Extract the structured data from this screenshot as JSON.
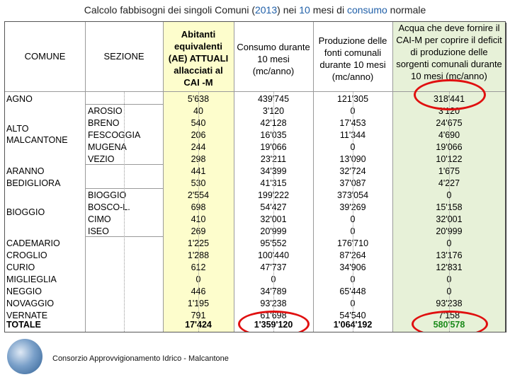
{
  "title": {
    "before": "Calcolo fabbisogni dei singoli Comuni (",
    "year": "2013",
    "middle": ") nei ",
    "ten": "10",
    "middle2": " mesi di ",
    "consumo": "consumo",
    "after": " normale"
  },
  "headers": {
    "comune": "COMUNE",
    "sezione": "SEZIONE",
    "abitanti": "Abitanti equivalenti (AE) ATTUALI allacciati al CAI -M",
    "consumo": "Consumo durante 10 mesi (mc/anno)",
    "produzione": "Produzione delle fonti comunali durante 10 mesi (mc/anno)",
    "acqua": "Acqua che deve fornire il CAI-M per coprire il deficit di produzione delle sorgenti comunali durante 10 mesi (mc/anno)"
  },
  "rows": [
    {
      "comune": "AGNO",
      "sezione": "",
      "abitanti": "5'638",
      "consumo": "439'745",
      "produzione": "121'305",
      "acqua": "318'441"
    },
    {
      "comune": "",
      "sezione": "AROSIO",
      "abitanti": "40",
      "consumo": "3'120",
      "produzione": "0",
      "acqua": "3'120"
    },
    {
      "comune": "",
      "sezione": "BRENO",
      "abitanti": "540",
      "consumo": "42'128",
      "produzione": "17'453",
      "acqua": "24'675"
    },
    {
      "comune": "",
      "sezione": "FESCOGGIA",
      "abitanti": "206",
      "consumo": "16'035",
      "produzione": "11'344",
      "acqua": "4'690"
    },
    {
      "comune": "",
      "sezione": "MUGENA",
      "abitanti": "244",
      "consumo": "19'066",
      "produzione": "0",
      "acqua": "19'066"
    },
    {
      "comune": "",
      "sezione": "VEZIO",
      "abitanti": "298",
      "consumo": "23'211",
      "produzione": "13'090",
      "acqua": "10'122"
    },
    {
      "comune": "ARANNO",
      "sezione": "",
      "abitanti": "441",
      "consumo": "34'399",
      "produzione": "32'724",
      "acqua": "1'675"
    },
    {
      "comune": "BEDIGLIORA",
      "sezione": "",
      "abitanti": "530",
      "consumo": "41'315",
      "produzione": "37'087",
      "acqua": "4'227"
    },
    {
      "comune": "",
      "sezione": "BIOGGIO",
      "abitanti": "2'554",
      "consumo": "199'222",
      "produzione": "373'054",
      "acqua": "0"
    },
    {
      "comune": "",
      "sezione": "BOSCO-L.",
      "abitanti": "698",
      "consumo": "54'427",
      "produzione": "39'269",
      "acqua": "15'158"
    },
    {
      "comune": "",
      "sezione": "CIMO",
      "abitanti": "410",
      "consumo": "32'001",
      "produzione": "0",
      "acqua": "32'001"
    },
    {
      "comune": "",
      "sezione": "ISEO",
      "abitanti": "269",
      "consumo": "20'999",
      "produzione": "0",
      "acqua": "20'999"
    },
    {
      "comune": "CADEMARIO",
      "sezione": "",
      "abitanti": "1'225",
      "consumo": "95'552",
      "produzione": "176'710",
      "acqua": "0"
    },
    {
      "comune": "CROGLIO",
      "sezione": "",
      "abitanti": "1'288",
      "consumo": "100'440",
      "produzione": "87'264",
      "acqua": "13'176"
    },
    {
      "comune": "CURIO",
      "sezione": "",
      "abitanti": "612",
      "consumo": "47'737",
      "produzione": "34'906",
      "acqua": "12'831"
    },
    {
      "comune": "MIGLIEGLIA",
      "sezione": "",
      "abitanti": "0",
      "consumo": "0",
      "produzione": "0",
      "acqua": "0"
    },
    {
      "comune": "NEGGIO",
      "sezione": "",
      "abitanti": "446",
      "consumo": "34'789",
      "produzione": "65'448",
      "acqua": "0"
    },
    {
      "comune": "NOVAGGIO",
      "sezione": "",
      "abitanti": "1'195",
      "consumo": "93'238",
      "produzione": "0",
      "acqua": "93'238"
    },
    {
      "comune": "VERNATE",
      "sezione": "",
      "abitanti": "791",
      "consumo": "61'698",
      "produzione": "54'540",
      "acqua": "7'158"
    }
  ],
  "group_labels": {
    "alto": "ALTO MALCANTONE",
    "bioggio": "BIOGGIO"
  },
  "totals": {
    "label": "TOTALE",
    "abitanti": "17'424",
    "consumo": "1'359'120",
    "produzione": "1'064'192",
    "acqua": "580'578"
  },
  "footer": "Consorzio Approvvigionamento Idrico - Malcantone",
  "colors": {
    "abitanti_bg": "#fdfdcc",
    "acqua_bg": "#e7f1d8",
    "highlight_circle": "#e01010",
    "total_acqua_text": "#1a8a1a",
    "title_accent": "#1f5fa8"
  }
}
